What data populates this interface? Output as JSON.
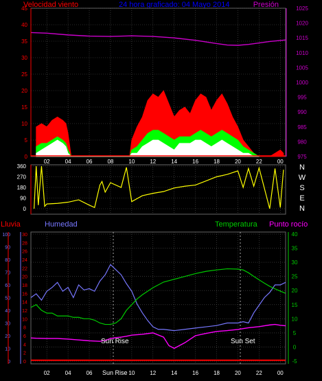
{
  "header": {
    "title": "24 hora graficado: 04 Mayo 2014",
    "left_label": "Velocidad viento",
    "right_label": "Presión"
  },
  "colors": {
    "wind_max": "#ff0000",
    "wind_avg": "#00ff00",
    "wind_min": "#ffffff",
    "pressure": "#cc00cc",
    "direction": "#ffff00",
    "rain": "#ff0000",
    "humidity": "#7777ff",
    "temperature": "#00cc00",
    "dewpoint": "#ff00ff",
    "title": "#0000ff",
    "axis_left": "#ff0000",
    "grid": "#555555"
  },
  "compass": [
    "N",
    "W",
    "S",
    "E",
    "N"
  ],
  "bottom_labels": {
    "rain": "Lluvia",
    "humidity": "Humedad",
    "temperature": "Temperatura",
    "dewpoint": "Punto rocío",
    "sunrise": "Sun Rise",
    "sunset": "Sun Set"
  },
  "chart_data": [
    {
      "type": "area",
      "x_ticks": [
        "02",
        "04",
        "06",
        "08",
        "10",
        "12",
        "14",
        "16",
        "18",
        "20",
        "22",
        "00"
      ],
      "x_range_hours": [
        0.5,
        24.5
      ],
      "ylim_left": [
        0,
        45
      ],
      "yticks_left": [
        0,
        5,
        10,
        15,
        20,
        25,
        30,
        35,
        40,
        45
      ],
      "ylim_right": [
        975,
        1025
      ],
      "yticks_right": [
        975,
        980,
        985,
        990,
        995,
        1000,
        1005,
        1010,
        1015,
        1020,
        1025
      ],
      "series": [
        {
          "name": "Velocidad viento",
          "x": [
            1.0,
            1.5,
            2.0,
            2.5,
            3.0,
            3.5,
            3.8,
            4.0,
            4.3,
            9.8,
            10.0,
            10.5,
            11.0,
            11.5,
            12.0,
            12.5,
            13.0,
            13.5,
            14.0,
            14.5,
            15.0,
            15.5,
            16.0,
            16.5,
            17.0,
            17.5,
            18.0,
            18.5,
            19.0,
            19.5,
            20.0,
            20.5,
            21.0,
            21.5,
            22.0,
            23.0,
            23.5,
            24.0,
            24.3
          ],
          "y": [
            9,
            10,
            9,
            11,
            12,
            11,
            10,
            7,
            0,
            0,
            5,
            9,
            12,
            17,
            19,
            18,
            20,
            16,
            12,
            14,
            15,
            13,
            17,
            19,
            18,
            14,
            17,
            19,
            16,
            12,
            9,
            5,
            3,
            1,
            0,
            0,
            1,
            2,
            1
          ]
        },
        {
          "name": "avg",
          "x": [
            1.0,
            1.5,
            2.0,
            2.5,
            3.0,
            3.5,
            3.8,
            4.0,
            4.3,
            9.8,
            10.0,
            10.5,
            11.0,
            11.5,
            12.0,
            12.5,
            13.0,
            13.5,
            14.0,
            14.5,
            15.0,
            15.5,
            16.0,
            16.5,
            17.0,
            17.5,
            18.0,
            18.5,
            19.0,
            19.5,
            20.0,
            20.5,
            21.0,
            21.5,
            22.0
          ],
          "y": [
            3,
            4,
            4,
            5,
            6,
            5,
            4,
            2,
            0,
            0,
            2,
            3,
            5,
            7,
            8,
            8,
            7,
            6,
            5,
            6,
            6,
            6,
            7,
            8,
            7,
            6,
            7,
            8,
            7,
            6,
            5,
            3,
            2,
            1,
            0
          ]
        },
        {
          "name": "min",
          "x": [
            1.0,
            1.5,
            2.0,
            2.5,
            3.0,
            3.5,
            3.8,
            4.0,
            4.3,
            9.8,
            10.0,
            10.5,
            11.0,
            11.5,
            12.0,
            12.5,
            13.0,
            13.5,
            14.0,
            14.5,
            15.0,
            15.5,
            16.0,
            16.5,
            17.0,
            17.5,
            18.0,
            18.5,
            19.0,
            19.5,
            20.0,
            20.5,
            21.0,
            21.5,
            22.0
          ],
          "y": [
            1,
            2,
            3,
            4,
            5,
            4,
            3,
            1,
            0,
            0,
            1,
            1,
            3,
            4,
            5,
            5,
            4,
            3,
            2,
            4,
            4,
            4,
            5,
            5,
            4,
            3,
            4,
            5,
            4,
            3,
            2,
            1,
            1,
            0,
            0
          ]
        },
        {
          "name": "Presión",
          "x": [
            0.5,
            2.0,
            4.0,
            6.0,
            8.0,
            10.0,
            12.0,
            14.0,
            16.0,
            18.0,
            19.0,
            20.0,
            21.0,
            22.0,
            23.0,
            24.5
          ],
          "y": [
            1016.8,
            1016.6,
            1016.0,
            1015.6,
            1015.5,
            1015.7,
            1015.5,
            1015.0,
            1014.2,
            1013.1,
            1012.6,
            1012.5,
            1012.8,
            1013.3,
            1013.8,
            1014.3
          ]
        }
      ]
    },
    {
      "type": "line",
      "x_ticks": [
        "02",
        "04",
        "06",
        "08",
        "10",
        "12",
        "14",
        "16",
        "18",
        "20",
        "22",
        "00"
      ],
      "ylim": [
        0,
        360
      ],
      "yticks": [
        0,
        90,
        180,
        270,
        360
      ],
      "series": [
        {
          "name": "direction",
          "x": [
            0.8,
            1.0,
            1.2,
            1.5,
            1.8,
            2.0,
            3.0,
            4.0,
            5.0,
            6.0,
            6.5,
            7.0,
            7.2,
            7.5,
            8.0,
            9.0,
            9.5,
            10.0,
            11.0,
            12.0,
            13.0,
            14.0,
            15.0,
            16.0,
            17.0,
            18.0,
            19.0,
            20.0,
            20.5,
            21.0,
            21.5,
            22.0,
            23.0,
            23.5,
            24.0,
            24.3
          ],
          "y": [
            0,
            360,
            30,
            360,
            20,
            40,
            45,
            55,
            75,
            30,
            10,
            200,
            230,
            140,
            220,
            180,
            350,
            60,
            110,
            130,
            145,
            175,
            190,
            200,
            235,
            270,
            290,
            320,
            180,
            340,
            190,
            345,
            0,
            340,
            10,
            330
          ]
        }
      ]
    },
    {
      "type": "line",
      "x_ticks": [
        "02",
        "04",
        "06",
        "08",
        "10",
        "12",
        "14",
        "16",
        "18",
        "20",
        "22",
        "00"
      ],
      "ylim_left": [
        0,
        100
      ],
      "yticks_left": [
        0,
        10,
        20,
        30,
        40,
        50,
        60,
        70,
        80,
        90,
        100
      ],
      "ylim_left_rain": [
        0,
        30
      ],
      "yticks_left_rain": [
        0,
        2,
        4,
        6,
        8,
        10,
        12,
        14,
        16,
        18,
        20,
        22,
        24,
        26,
        28,
        30
      ],
      "ylim_right": [
        -5,
        40
      ],
      "yticks_right": [
        -5,
        0,
        5,
        10,
        15,
        20,
        25,
        30,
        35,
        40
      ],
      "series": [
        {
          "name": "Humedad",
          "x": [
            0.5,
            1.0,
            1.5,
            2.0,
            2.5,
            3.0,
            3.5,
            4.0,
            4.5,
            5.0,
            5.5,
            6.0,
            6.5,
            7.0,
            7.5,
            8.0,
            8.5,
            9.0,
            9.5,
            10.0,
            10.5,
            11.0,
            11.5,
            12.0,
            12.5,
            13.0,
            14.0,
            15.0,
            16.0,
            17.0,
            18.0,
            19.0,
            20.0,
            20.5,
            21.0,
            21.5,
            22.0,
            22.5,
            23.0,
            23.5,
            24.0,
            24.5
          ],
          "y": [
            50,
            53,
            48,
            55,
            58,
            62,
            55,
            58,
            50,
            60,
            56,
            57,
            55,
            63,
            68,
            76,
            72,
            68,
            61,
            55,
            45,
            38,
            32,
            27,
            25,
            25,
            24,
            25,
            26,
            27,
            28,
            30,
            30,
            31,
            30,
            38,
            44,
            50,
            54,
            60,
            60,
            62
          ]
        },
        {
          "name": "Temperatura",
          "x": [
            0.5,
            1.0,
            1.5,
            2.0,
            2.5,
            3.0,
            3.5,
            4.0,
            4.5,
            5.0,
            5.5,
            6.0,
            6.5,
            7.0,
            7.5,
            8.0,
            8.5,
            9.0,
            9.5,
            10.0,
            10.5,
            11.0,
            12.0,
            13.0,
            14.0,
            15.0,
            16.0,
            17.0,
            18.0,
            19.0,
            20.0,
            20.5,
            21.0,
            21.5,
            22.0,
            22.5,
            23.0,
            23.5,
            24.0,
            24.5
          ],
          "y": [
            14,
            15,
            13,
            12,
            12,
            11,
            11,
            11,
            10.5,
            10.5,
            10,
            10,
            9.5,
            8.5,
            8,
            8,
            8.5,
            10,
            13,
            15,
            17,
            18.5,
            21,
            23,
            24,
            25,
            26,
            26.8,
            27.3,
            27.7,
            27.6,
            27.3,
            26.3,
            25,
            23.8,
            22.6,
            21.5,
            20.6,
            19.8,
            19
          ]
        },
        {
          "name": "Punto rocío",
          "x": [
            0.5,
            1.0,
            2.0,
            3.0,
            4.0,
            5.0,
            6.0,
            7.0,
            7.5,
            8.0,
            8.5,
            9.0,
            9.5,
            10.0,
            11.0,
            12.0,
            13.0,
            13.5,
            14.0,
            14.5,
            15.0,
            16.0,
            17.0,
            18.0,
            19.0,
            20.0,
            21.0,
            22.0,
            22.5,
            23.0,
            23.5,
            24.0,
            24.5
          ],
          "y": [
            3.2,
            3.1,
            3.0,
            3.0,
            2.8,
            2.5,
            2.2,
            2.0,
            2.3,
            3.0,
            3.3,
            3.5,
            3.8,
            4.2,
            4.5,
            5.0,
            3.5,
            0.5,
            -0.5,
            0.5,
            1.5,
            4.0,
            4.8,
            5.5,
            5.8,
            6.2,
            6.8,
            7.2,
            7.5,
            7.8,
            8.0,
            7.7,
            7.5
          ]
        },
        {
          "name": "Lluvia",
          "x": [
            0.5,
            24.5
          ],
          "y": [
            0.2,
            0.2
          ]
        }
      ]
    }
  ]
}
